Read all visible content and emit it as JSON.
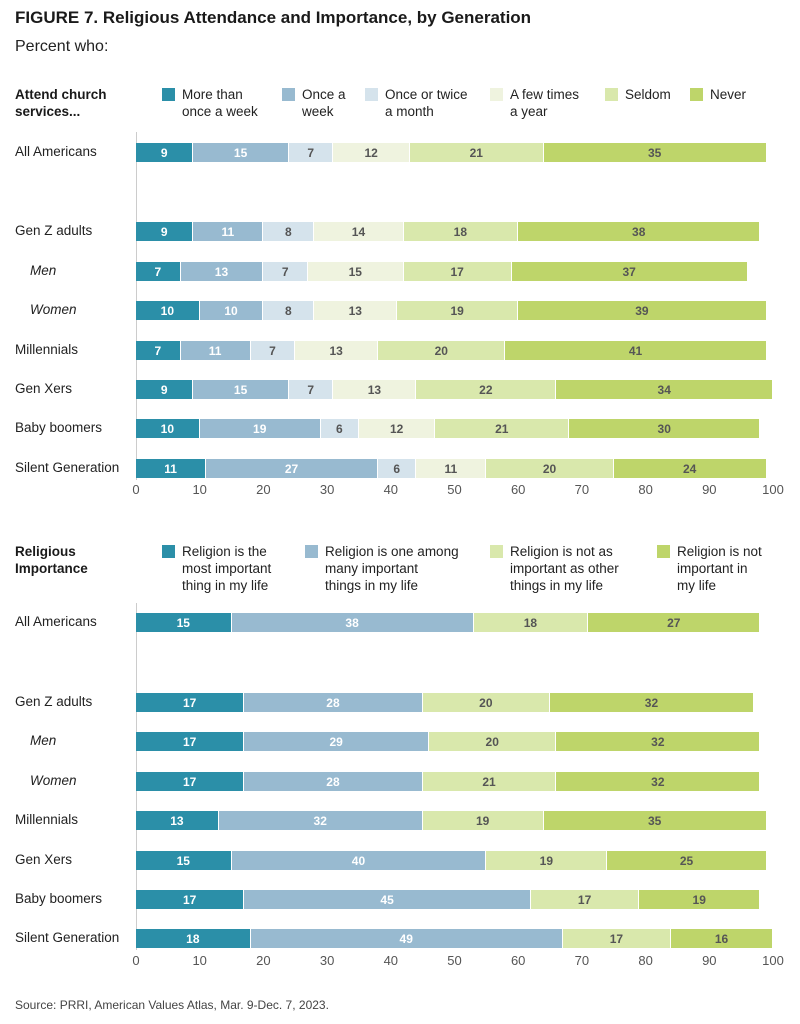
{
  "figure": {
    "title": "FIGURE 7.  Religious Attendance and Importance, by Generation",
    "subtitle": "Percent who:",
    "source": "Source: PRRI, American Values Atlas, Mar. 9-Dec. 7, 2023."
  },
  "colors": {
    "teal_dark": "#2b8fa8",
    "blue_mid": "#98bad0",
    "blue_light": "#d5e3ec",
    "cream": "#eff3df",
    "green_light": "#d9e8ac",
    "green": "#bed56a"
  },
  "chart_data": [
    {
      "type": "bar",
      "orientation": "horizontal",
      "stacked": true,
      "title": "Attend church services...",
      "categories": [
        "All Americans",
        "Gen Z adults",
        "Men",
        "Women",
        "Millennials",
        "Gen Xers",
        "Baby boomers",
        "Silent Generation"
      ],
      "series": [
        {
          "name": "More than once a week",
          "color": "#2b8fa8",
          "values": [
            9,
            9,
            7,
            10,
            7,
            9,
            10,
            11
          ]
        },
        {
          "name": "Once a week",
          "color": "#98bad0",
          "values": [
            15,
            11,
            13,
            10,
            11,
            15,
            19,
            27
          ]
        },
        {
          "name": "Once or twice a month",
          "color": "#d5e3ec",
          "values": [
            7,
            8,
            7,
            8,
            7,
            7,
            6,
            6
          ]
        },
        {
          "name": "A few times a year",
          "color": "#eff3df",
          "values": [
            12,
            14,
            15,
            13,
            13,
            13,
            12,
            11
          ]
        },
        {
          "name": "Seldom",
          "color": "#d9e8ac",
          "values": [
            21,
            18,
            17,
            19,
            20,
            22,
            21,
            20
          ]
        },
        {
          "name": "Never",
          "color": "#bed56a",
          "values": [
            35,
            38,
            37,
            39,
            41,
            34,
            30,
            24
          ]
        }
      ],
      "xlim": [
        0,
        100
      ],
      "xticks": [
        0,
        10,
        20,
        30,
        40,
        50,
        60,
        70,
        80,
        90,
        100
      ],
      "grid": false,
      "legend_position": "top"
    },
    {
      "type": "bar",
      "orientation": "horizontal",
      "stacked": true,
      "title": "Religious Importance",
      "categories": [
        "All Americans",
        "Gen Z adults",
        "Men",
        "Women",
        "Millennials",
        "Gen Xers",
        "Baby boomers",
        "Silent Generation"
      ],
      "series": [
        {
          "name": "Religion is the most important thing in my life",
          "color": "#2b8fa8",
          "values": [
            15,
            17,
            17,
            17,
            13,
            15,
            17,
            18
          ]
        },
        {
          "name": "Religion is one among many important things in my life",
          "color": "#98bad0",
          "values": [
            38,
            28,
            29,
            28,
            32,
            40,
            45,
            49
          ]
        },
        {
          "name": "Religion is not as important as other things in my life",
          "color": "#d9e8ac",
          "values": [
            18,
            20,
            20,
            21,
            19,
            19,
            17,
            17
          ]
        },
        {
          "name": "Religion is not important in my life",
          "color": "#bed56a",
          "values": [
            27,
            32,
            32,
            32,
            35,
            25,
            19,
            16
          ]
        }
      ],
      "xlim": [
        0,
        100
      ],
      "xticks": [
        0,
        10,
        20,
        30,
        40,
        50,
        60,
        70,
        80,
        90,
        100
      ],
      "grid": false,
      "legend_position": "top"
    }
  ],
  "panels": [
    {
      "label_line1": "Attend church",
      "label_line2": "services...",
      "legend": [
        {
          "line1": "More than",
          "line2": "once a week"
        },
        {
          "line1": "Once a",
          "line2": "week"
        },
        {
          "line1": "Once or twice",
          "line2": "a month"
        },
        {
          "line1": "A few times",
          "line2": "a year"
        },
        {
          "line1": "Seldom",
          "line2": ""
        },
        {
          "line1": "Never",
          "line2": ""
        }
      ]
    },
    {
      "label_line1": "Religious",
      "label_line2": "Importance",
      "legend": [
        {
          "line1": "Religion is the",
          "line2": "most important",
          "line3": "thing in my life"
        },
        {
          "line1": "Religion is one among",
          "line2": "many important",
          "line3": "things in my life"
        },
        {
          "line1": "Religion is not as",
          "line2": "important as other",
          "line3": "things in my life"
        },
        {
          "line1": "Religion is not",
          "line2": "important in",
          "line3": "my life"
        }
      ]
    }
  ]
}
